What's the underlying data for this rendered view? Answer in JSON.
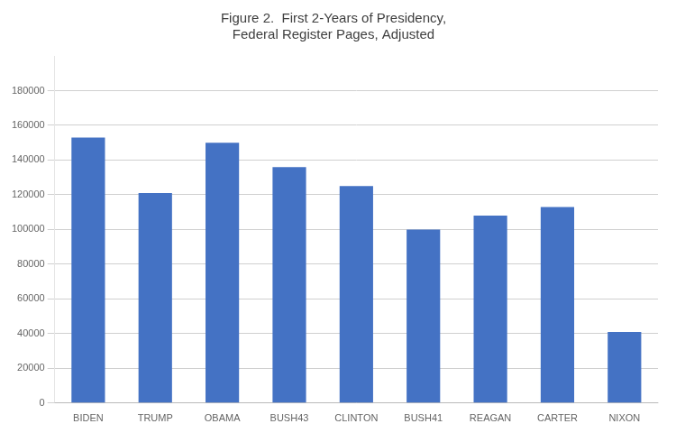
{
  "chart_data": {
    "type": "bar",
    "title": "Figure 2.  First 2-Years of Presidency,\nFederal Register Pages, Adjusted",
    "categories": [
      "BIDEN",
      "TRUMP",
      "OBAMA",
      "BUSH43",
      "CLINTON",
      "BUSH41",
      "REAGAN",
      "CARTER",
      "NIXON"
    ],
    "values": [
      153000,
      121000,
      150000,
      136000,
      125000,
      100000,
      108000,
      113000,
      41000
    ],
    "color": "#4472C4",
    "ylim": [
      0,
      200000
    ],
    "yticks": [
      0,
      20000,
      40000,
      60000,
      80000,
      100000,
      120000,
      140000,
      160000,
      180000
    ],
    "grid": true
  }
}
